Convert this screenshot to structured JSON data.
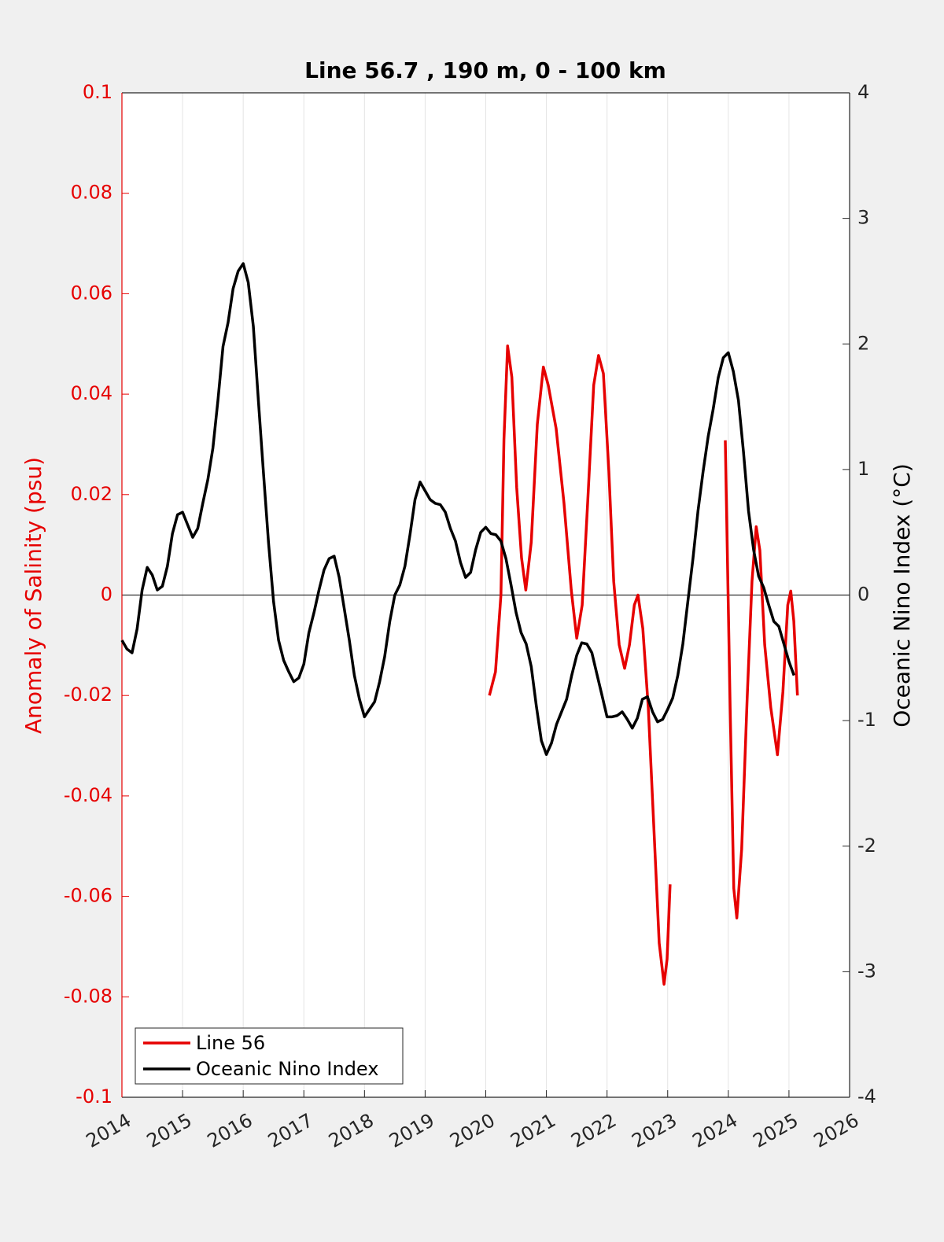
{
  "chart_data": {
    "type": "line",
    "title": "Line 56.7 , 190 m, 0 - 100 km",
    "ylabel": "Anomaly of Salinity (psu)",
    "y2label": "Oceanic Nino Index (°C)",
    "xlim": [
      2014,
      2026
    ],
    "xticks": [
      2014,
      2015,
      2016,
      2017,
      2018,
      2019,
      2020,
      2021,
      2022,
      2023,
      2024,
      2025,
      2026
    ],
    "ylim": [
      -0.1,
      0.1
    ],
    "yticks": [
      -0.1,
      -0.08,
      -0.06,
      -0.04,
      -0.02,
      0,
      0.02,
      0.04,
      0.06,
      0.08,
      0.1
    ],
    "y2lim": [
      -4,
      4
    ],
    "y2ticks": [
      -4,
      -3,
      -2,
      -1,
      0,
      1,
      2,
      3,
      4
    ],
    "grid": "x",
    "legend": "southwest",
    "series": [
      {
        "name": "Line 56",
        "color": "#e60000",
        "axis": "y",
        "x": [
          2020.06,
          2020.16,
          2020.25,
          2020.3,
          2020.36,
          2020.43,
          2020.51,
          2020.59,
          2020.66,
          2020.75,
          2020.85,
          2020.95,
          2021.03,
          2021.16,
          2021.29,
          2021.41,
          2021.5,
          2021.59,
          2021.68,
          2021.78,
          2021.86,
          2021.94,
          2022.03,
          2022.11,
          2022.2,
          2022.29,
          2022.37,
          2022.45,
          2022.51,
          2022.59,
          2022.68,
          2022.77,
          2022.86,
          2022.94,
          2022.99,
          2023.04,
          2023.5,
          2023.95,
          2024.03,
          2024.09,
          2024.14,
          2024.22,
          2024.31,
          2024.39,
          2024.46,
          2024.52,
          2024.6,
          2024.7,
          2024.81,
          2024.9,
          2024.98,
          2025.03,
          2025.08,
          2025.14
        ],
        "values": [
          -0.02,
          -0.0153,
          0,
          0.031,
          0.0496,
          0.0434,
          0.0214,
          0.0074,
          0.001,
          0.0105,
          0.034,
          0.0454,
          0.0418,
          0.0332,
          0.0183,
          0.001,
          -0.0086,
          -0.002,
          0.0183,
          0.0418,
          0.0477,
          0.0441,
          0.0246,
          0.0027,
          -0.0099,
          -0.0146,
          -0.0099,
          -0.002,
          0,
          -0.0067,
          -0.0224,
          -0.0458,
          -0.0693,
          -0.0775,
          -0.0725,
          -0.0576,
          null,
          0.0308,
          -0.0224,
          -0.0584,
          -0.0643,
          -0.0506,
          -0.0208,
          0.0027,
          0.0136,
          0.0089,
          -0.0099,
          -0.0224,
          -0.0318,
          -0.0193,
          -0.002,
          0.0008,
          -0.0052,
          -0.02
        ]
      },
      {
        "name": "Oceanic Nino Index",
        "color": "#000000",
        "axis": "y2",
        "x": [
          2014.0,
          2014.083,
          2014.167,
          2014.25,
          2014.333,
          2014.417,
          2014.5,
          2014.583,
          2014.667,
          2014.75,
          2014.833,
          2014.917,
          2015.0,
          2015.083,
          2015.167,
          2015.25,
          2015.333,
          2015.417,
          2015.5,
          2015.583,
          2015.667,
          2015.75,
          2015.833,
          2015.917,
          2016.0,
          2016.083,
          2016.167,
          2016.25,
          2016.333,
          2016.417,
          2016.5,
          2016.583,
          2016.667,
          2016.75,
          2016.833,
          2016.917,
          2017.0,
          2017.083,
          2017.167,
          2017.25,
          2017.333,
          2017.417,
          2017.5,
          2017.583,
          2017.667,
          2017.75,
          2017.833,
          2017.917,
          2018.0,
          2018.083,
          2018.167,
          2018.25,
          2018.333,
          2018.417,
          2018.5,
          2018.583,
          2018.667,
          2018.75,
          2018.833,
          2018.917,
          2019.0,
          2019.083,
          2019.167,
          2019.25,
          2019.333,
          2019.417,
          2019.5,
          2019.583,
          2019.667,
          2019.75,
          2019.833,
          2019.917,
          2020.0,
          2020.083,
          2020.167,
          2020.25,
          2020.333,
          2020.417,
          2020.5,
          2020.583,
          2020.667,
          2020.75,
          2020.833,
          2020.917,
          2021.0,
          2021.083,
          2021.167,
          2021.25,
          2021.333,
          2021.417,
          2021.5,
          2021.583,
          2021.667,
          2021.75,
          2021.833,
          2021.917,
          2022.0,
          2022.083,
          2022.167,
          2022.25,
          2022.333,
          2022.417,
          2022.5,
          2022.583,
          2022.667,
          2022.75,
          2022.833,
          2022.917,
          2023.0,
          2023.083,
          2023.167,
          2023.25,
          2023.333,
          2023.417,
          2023.5,
          2023.583,
          2023.667,
          2023.75,
          2023.833,
          2023.917,
          2024.0,
          2024.083,
          2024.167,
          2024.25,
          2024.333,
          2024.417,
          2024.5,
          2024.583,
          2024.667,
          2024.75,
          2024.833,
          2024.917,
          2025.0,
          2025.083
        ],
        "values": [
          -0.36,
          -0.43,
          -0.46,
          -0.27,
          0.04,
          0.22,
          0.16,
          0.04,
          0.07,
          0.23,
          0.49,
          0.64,
          0.66,
          0.56,
          0.46,
          0.53,
          0.73,
          0.92,
          1.17,
          1.55,
          1.98,
          2.17,
          2.44,
          2.58,
          2.64,
          2.49,
          2.14,
          1.55,
          0.98,
          0.42,
          -0.05,
          -0.36,
          -0.52,
          -0.61,
          -0.69,
          -0.66,
          -0.55,
          -0.3,
          -0.14,
          0.04,
          0.2,
          0.29,
          0.31,
          0.14,
          -0.11,
          -0.36,
          -0.64,
          -0.83,
          -0.97,
          -0.91,
          -0.85,
          -0.69,
          -0.49,
          -0.21,
          0,
          0.08,
          0.23,
          0.48,
          0.76,
          0.9,
          0.83,
          0.76,
          0.73,
          0.72,
          0.66,
          0.53,
          0.43,
          0.26,
          0.14,
          0.18,
          0.36,
          0.5,
          0.54,
          0.49,
          0.48,
          0.43,
          0.29,
          0.08,
          -0.14,
          -0.3,
          -0.39,
          -0.57,
          -0.88,
          -1.16,
          -1.27,
          -1.18,
          -1.03,
          -0.93,
          -0.83,
          -0.64,
          -0.48,
          -0.38,
          -0.39,
          -0.46,
          -0.63,
          -0.8,
          -0.97,
          -0.97,
          -0.96,
          -0.93,
          -0.99,
          -1.06,
          -0.98,
          -0.83,
          -0.81,
          -0.93,
          -1.01,
          -0.99,
          -0.91,
          -0.82,
          -0.64,
          -0.39,
          -0.05,
          0.29,
          0.67,
          0.98,
          1.26,
          1.48,
          1.73,
          1.89,
          1.93,
          1.78,
          1.55,
          1.14,
          0.67,
          0.36,
          0.15,
          0.06,
          -0.08,
          -0.21,
          -0.25,
          -0.39,
          -0.53,
          -0.64
        ]
      }
    ]
  }
}
